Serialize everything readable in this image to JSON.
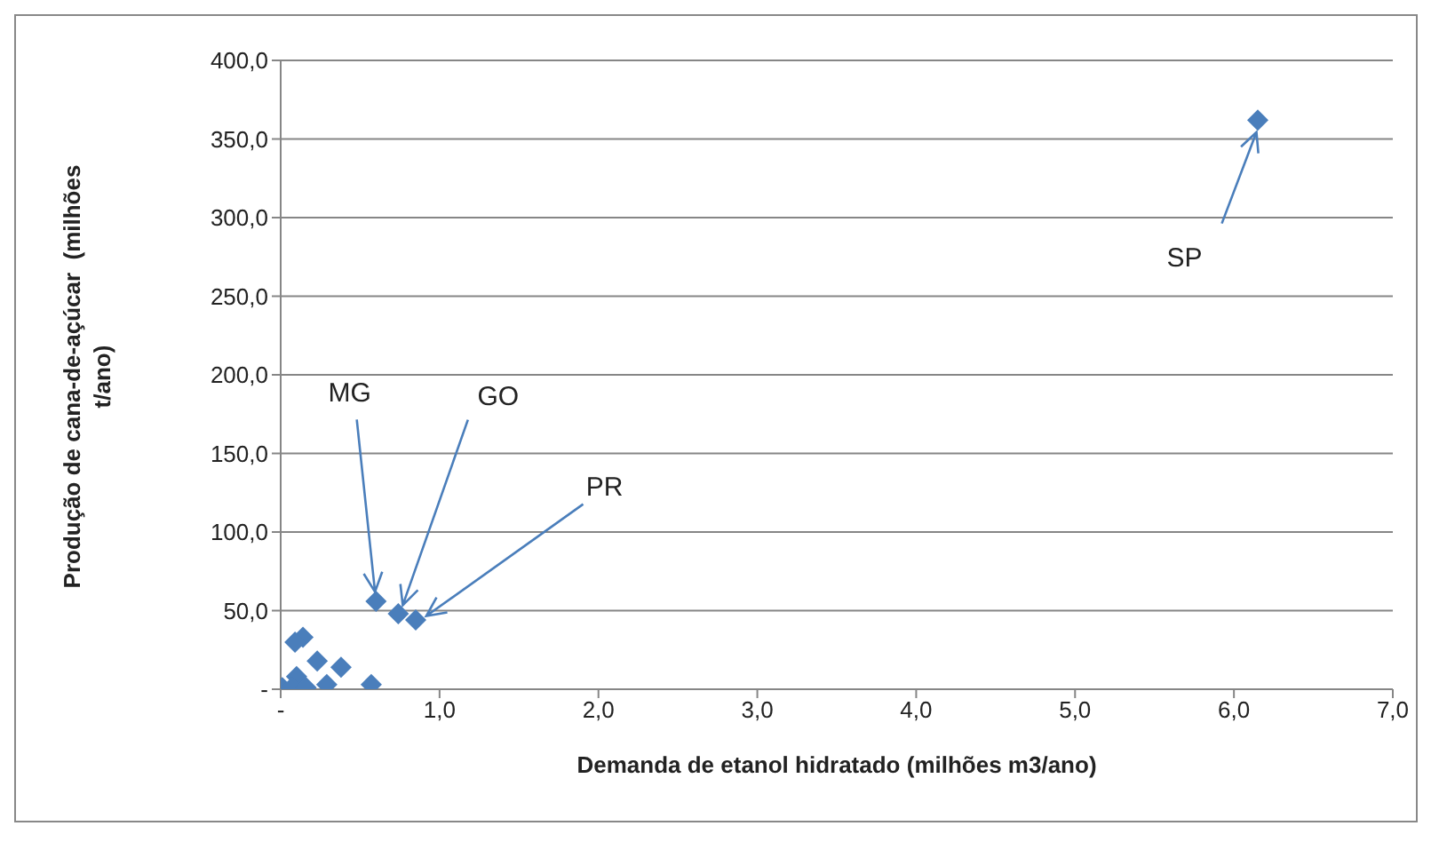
{
  "chart_data": {
    "type": "scatter",
    "xlabel": "Demanda de etanol hidratado (milhões m3/ano)",
    "ylabel": "Produção de cana-de-açúcar  (milhões t/ano)",
    "x": [
      6.15,
      0.6,
      0.74,
      0.85,
      0.14,
      0.09,
      0.23,
      0.38,
      0.29,
      0.57,
      0.1,
      0.01,
      0.07,
      0.16
    ],
    "values": [
      362,
      56,
      48,
      44,
      33,
      30,
      18,
      14,
      3,
      3,
      8,
      1,
      1,
      1
    ],
    "color": "#4a7ebb",
    "marker": "diamond",
    "grid": "y",
    "xlim": [
      0,
      7
    ],
    "xticks": [
      {
        "value": 0,
        "label": "-"
      },
      {
        "value": 1,
        "label": "1,0"
      },
      {
        "value": 2,
        "label": "2,0"
      },
      {
        "value": 3,
        "label": "3,0"
      },
      {
        "value": 4,
        "label": "4,0"
      },
      {
        "value": 5,
        "label": "5,0"
      },
      {
        "value": 6,
        "label": "6,0"
      },
      {
        "value": 7,
        "label": "7,0"
      }
    ],
    "ylim": [
      0,
      400
    ],
    "yticks": [
      {
        "value": 0,
        "label": "-"
      },
      {
        "value": 50,
        "label": "50,0"
      },
      {
        "value": 100,
        "label": "100,0"
      },
      {
        "value": 150,
        "label": "150,0"
      },
      {
        "value": 200,
        "label": "200,0"
      },
      {
        "value": 250,
        "label": "250,0"
      },
      {
        "value": 300,
        "label": "300,0"
      },
      {
        "value": 350,
        "label": "350,0"
      },
      {
        "value": 400,
        "label": "400,0"
      }
    ],
    "annotations": [
      {
        "text": "SP",
        "x": 6.15,
        "y": 362
      },
      {
        "text": "MG",
        "x": 0.6,
        "y": 56
      },
      {
        "text": "GO",
        "x": 0.74,
        "y": 48
      },
      {
        "text": "PR",
        "x": 0.85,
        "y": 44
      }
    ]
  }
}
